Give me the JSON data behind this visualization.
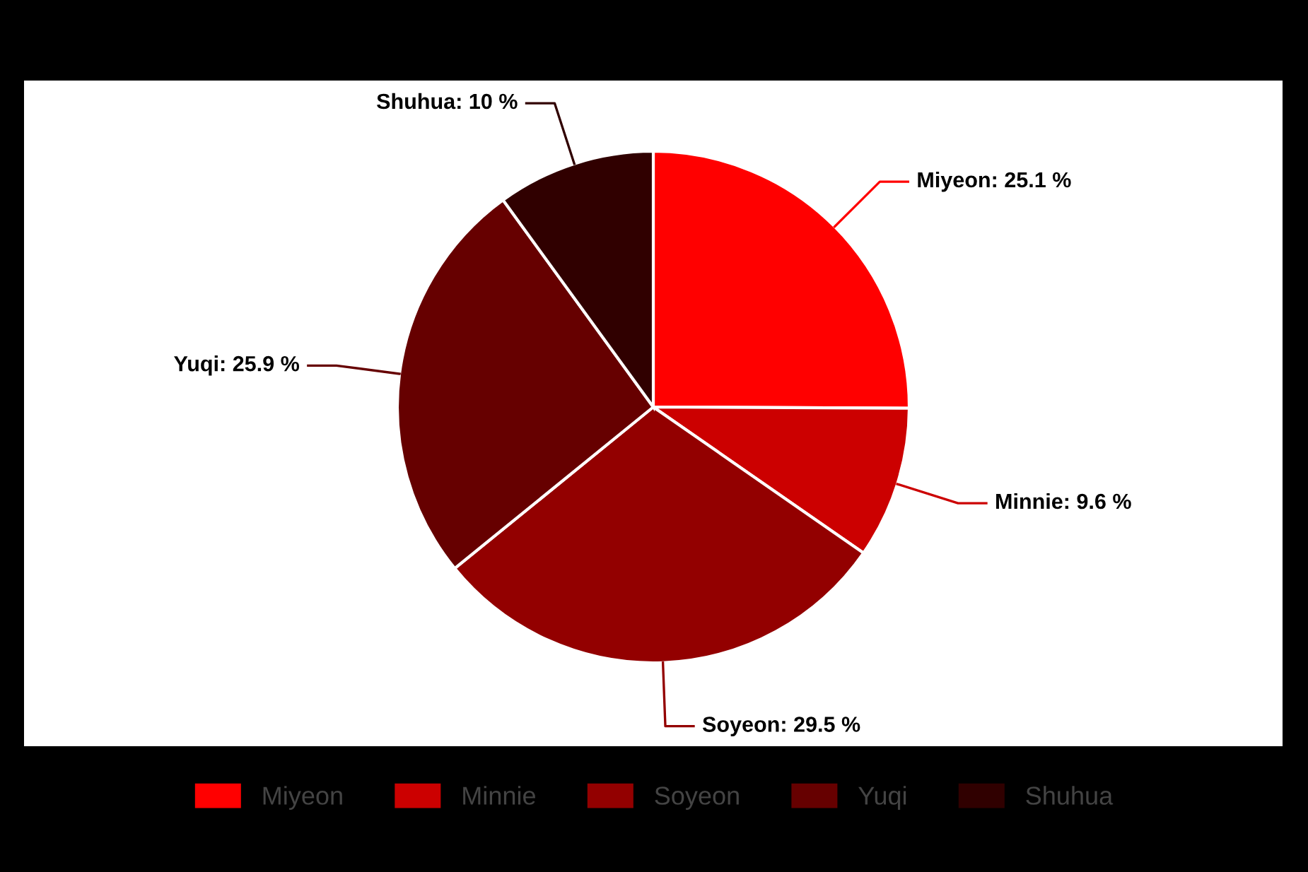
{
  "chart_data": {
    "type": "pie",
    "categories": [
      "Miyeon",
      "Minnie",
      "Soyeon",
      "Yuqi",
      "Shuhua"
    ],
    "values": [
      25.1,
      9.6,
      29.5,
      25.9,
      10
    ],
    "colors": [
      "#ff0000",
      "#cc0000",
      "#930000",
      "#660000",
      "#300000"
    ],
    "value_labels": [
      "Miyeon: 25.1 %",
      "Minnie: 9.6 %",
      "Soyeon: 29.5 %",
      "Yuqi: 25.9 %",
      "Shuhua: 10 %"
    ],
    "legend": "bottom"
  }
}
